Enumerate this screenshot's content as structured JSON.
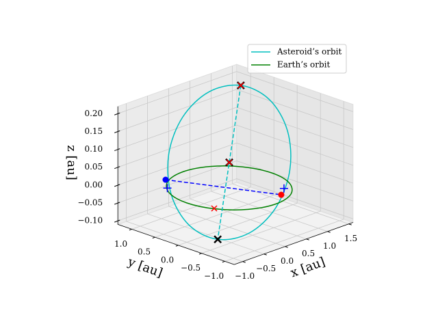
{
  "chart_data": {
    "type": "line3d",
    "xlabel": "x [au]",
    "ylabel": "y [au]",
    "zlabel": "z [au]",
    "xlim": [
      -1.2,
      1.6
    ],
    "ylim": [
      -1.2,
      1.3
    ],
    "zlim": [
      -0.11,
      0.22
    ],
    "xticks": [
      {
        "value": -1.0,
        "label": "−1.0"
      },
      {
        "value": -0.5,
        "label": "−0.5"
      },
      {
        "value": 0.0,
        "label": "0.0"
      },
      {
        "value": 0.5,
        "label": "0.5"
      },
      {
        "value": 1.0,
        "label": "1.0"
      },
      {
        "value": 1.5,
        "label": "1.5"
      }
    ],
    "yticks": [
      {
        "value": 1.0,
        "label": "1.0"
      },
      {
        "value": 0.5,
        "label": "0.5"
      },
      {
        "value": 0.0,
        "label": "0.0"
      },
      {
        "value": -0.5,
        "label": "−0.5"
      },
      {
        "value": -1.0,
        "label": "−1.0"
      }
    ],
    "zticks": [
      {
        "value": 0.2,
        "label": "0.20"
      },
      {
        "value": 0.15,
        "label": "0.15"
      },
      {
        "value": 0.1,
        "label": "0.10"
      },
      {
        "value": 0.05,
        "label": "0.05"
      },
      {
        "value": 0.0,
        "label": "0.00"
      },
      {
        "value": -0.05,
        "label": "−0.05"
      },
      {
        "value": -0.1,
        "label": "−0.10"
      }
    ],
    "grid": true,
    "legend": "upper right",
    "series": [
      {
        "name": "Asteroid’s orbit",
        "color": "#00bfbf",
        "x": [
          0.59,
          0.291,
          -0.086,
          -0.44,
          -0.676,
          -0.731,
          -0.59,
          -0.291,
          0.086,
          0.44,
          0.676,
          0.731
        ],
        "y": [
          0.29,
          0.701,
          0.924,
          0.9,
          0.634,
          0.199,
          -0.29,
          -0.701,
          -0.924,
          -0.9,
          -0.634,
          -0.199
        ],
        "z": [
          0.249,
          0.225,
          0.16,
          0.072,
          -0.017,
          -0.082,
          -0.106,
          -0.082,
          -0.017,
          0.072,
          0.16,
          0.225
        ]
      },
      {
        "name": "Earth’s orbit",
        "color": "#008000",
        "x": [
          1,
          0.866,
          0.5,
          0,
          -0.5,
          -0.866,
          -1,
          -0.866,
          -0.5,
          0,
          0.5,
          0.866
        ],
        "y": [
          0,
          0.5,
          0.866,
          1,
          0.866,
          0.5,
          0,
          -0.5,
          -0.866,
          -1,
          -0.866,
          -0.5
        ],
        "z": [
          0,
          0,
          0,
          0,
          0,
          0,
          0,
          0,
          0,
          0,
          0,
          0
        ]
      }
    ],
    "segments": [
      {
        "color": "#00bfbf",
        "x": [
          0.59,
          -0.59
        ],
        "y": [
          0.29,
          -0.29
        ],
        "z": [
          0.249,
          -0.106
        ]
      },
      {
        "color": "#0000ff",
        "x": [
          -0.464,
          0.374
        ],
        "y": [
          0.945,
          -0.776
        ],
        "z": [
          0,
          0
        ]
      }
    ],
    "markers": [
      {
        "marker": "X",
        "color": "#000000",
        "x": [
          0.59,
          0,
          -0.59
        ],
        "y": [
          0.29,
          0,
          -0.29
        ],
        "z": [
          0.249,
          0.0715,
          -0.106
        ]
      },
      {
        "marker": "x",
        "color": "#ff0000",
        "x": [
          0.59,
          0,
          -0.866
        ],
        "y": [
          0.29,
          0,
          -0.466
        ],
        "z": [
          0.249,
          0.0715,
          0
        ]
      },
      {
        "marker": "o",
        "color": "#0000ff",
        "x": [
          -0.464
        ],
        "y": [
          0.945
        ],
        "z": [
          0
        ]
      },
      {
        "marker": "o",
        "color": "#ff0000",
        "x": [
          0.374
        ],
        "y": [
          -0.776
        ],
        "z": [
          0
        ]
      },
      {
        "marker": "+",
        "color": "#0000ff",
        "x": [
          -0.45,
          0.39
        ],
        "y": [
          0.92,
          -0.82
        ],
        "z": [
          -0.023,
          0.019
        ]
      }
    ]
  }
}
